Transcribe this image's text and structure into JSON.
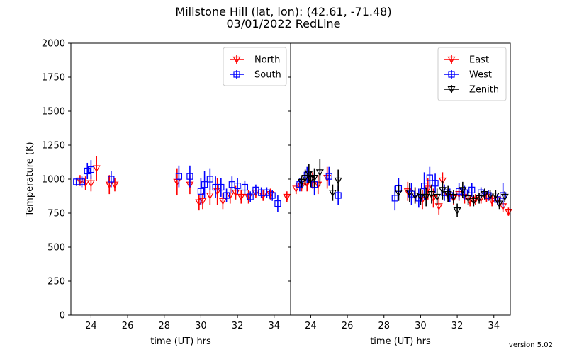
{
  "title_line1": "Millstone Hill  (lat, lon):  (42.61, -71.48)",
  "title_line2": "03/01/2022 RedLine",
  "version": "version 5.02",
  "chart_data": [
    {
      "type": "scatter",
      "panel": "left",
      "xlabel": "time (UT) hrs",
      "ylabel": "Temperature (K)",
      "xlim": [
        22.9,
        34.9
      ],
      "ylim": [
        0,
        2000
      ],
      "xticks": [
        24,
        26,
        28,
        30,
        32,
        34
      ],
      "yticks": [
        0,
        250,
        500,
        750,
        1000,
        1250,
        1500,
        1750,
        2000
      ],
      "legend_position": "top-right",
      "series": [
        {
          "name": "North",
          "color": "#ff0000",
          "marker": "tri-down",
          "x": [
            23.4,
            23.7,
            24.0,
            24.3,
            25.0,
            25.3,
            28.7,
            29.4,
            29.9,
            30.1,
            30.5,
            30.9,
            31.2,
            31.6,
            31.9,
            32.2,
            32.6,
            33.0,
            33.4,
            33.8,
            34.7
          ],
          "y": [
            990,
            970,
            970,
            1080,
            960,
            960,
            980,
            960,
            830,
            840,
            880,
            910,
            840,
            880,
            900,
            870,
            870,
            900,
            880,
            890,
            870
          ],
          "err": [
            40,
            50,
            60,
            90,
            70,
            50,
            100,
            70,
            60,
            60,
            70,
            100,
            60,
            60,
            50,
            50,
            50,
            40,
            40,
            40,
            40
          ]
        },
        {
          "name": "South",
          "color": "#0000ff",
          "marker": "square",
          "x": [
            23.2,
            23.5,
            23.8,
            24.0,
            25.1,
            28.8,
            29.4,
            30.0,
            30.2,
            30.5,
            30.8,
            31.1,
            31.4,
            31.7,
            32.0,
            32.4,
            32.7,
            33.0,
            33.3,
            33.6,
            33.9,
            34.2
          ],
          "y": [
            980,
            980,
            1060,
            1070,
            1000,
            1020,
            1020,
            910,
            960,
            1000,
            940,
            940,
            880,
            960,
            950,
            940,
            870,
            920,
            900,
            900,
            880,
            820
          ],
          "err": [
            30,
            40,
            60,
            70,
            60,
            80,
            80,
            100,
            100,
            80,
            80,
            70,
            50,
            60,
            60,
            50,
            40,
            40,
            40,
            40,
            40,
            60
          ]
        }
      ]
    },
    {
      "type": "scatter",
      "panel": "right",
      "xlabel": "time (UT) hrs",
      "ylabel": "",
      "xlim": [
        22.9,
        34.9
      ],
      "ylim": [
        0,
        2000
      ],
      "xticks": [
        24,
        26,
        28,
        30,
        32,
        34
      ],
      "yticks": [
        0,
        250,
        500,
        750,
        1000,
        1250,
        1500,
        1750,
        2000
      ],
      "legend_position": "top-right",
      "series": [
        {
          "name": "East",
          "color": "#ff0000",
          "marker": "tri-down",
          "x": [
            23.2,
            23.5,
            23.8,
            24.1,
            24.4,
            24.9,
            29.3,
            29.7,
            30.1,
            30.4,
            30.7,
            31.0,
            31.2,
            31.5,
            31.8,
            32.1,
            32.4,
            32.7,
            33.0,
            33.3,
            33.6,
            33.9,
            34.2,
            34.5,
            34.8
          ],
          "y": [
            930,
            950,
            970,
            990,
            960,
            1010,
            910,
            880,
            850,
            930,
            860,
            800,
            990,
            880,
            860,
            890,
            870,
            840,
            850,
            860,
            870,
            840,
            850,
            800,
            760
          ],
          "err": [
            40,
            40,
            60,
            60,
            70,
            80,
            70,
            60,
            70,
            80,
            70,
            60,
            60,
            50,
            50,
            50,
            50,
            40,
            40,
            40,
            40,
            40,
            40,
            40,
            30
          ]
        },
        {
          "name": "West",
          "color": "#0000ff",
          "marker": "square",
          "x": [
            23.4,
            23.8,
            24.2,
            25.0,
            25.5,
            28.6,
            28.8,
            29.5,
            29.9,
            30.2,
            30.5,
            30.8,
            31.3,
            31.6,
            32.1,
            32.4,
            32.8,
            33.3,
            33.7,
            34.2,
            34.5
          ],
          "y": [
            960,
            1030,
            960,
            1020,
            880,
            860,
            930,
            890,
            860,
            950,
            1010,
            970,
            900,
            880,
            910,
            900,
            920,
            900,
            880,
            850,
            880
          ],
          "err": [
            50,
            60,
            80,
            70,
            70,
            90,
            80,
            80,
            70,
            100,
            80,
            70,
            60,
            50,
            60,
            50,
            50,
            40,
            40,
            40,
            90
          ]
        },
        {
          "name": "Zenith",
          "color": "#000000",
          "marker": "tri-down",
          "x": [
            23.5,
            23.7,
            23.9,
            24.0,
            24.2,
            24.5,
            25.2,
            25.5,
            28.8,
            29.4,
            29.7,
            30.0,
            30.3,
            30.6,
            30.9,
            31.2,
            31.5,
            31.8,
            32.0,
            32.3,
            32.6,
            32.9,
            33.2,
            33.5,
            33.8,
            34.1,
            34.3,
            34.6
          ],
          "y": [
            980,
            1010,
            1040,
            1000,
            1010,
            1050,
            900,
            990,
            900,
            900,
            880,
            870,
            870,
            890,
            870,
            920,
            890,
            870,
            770,
            920,
            860,
            840,
            860,
            890,
            880,
            880,
            820,
            870
          ],
          "err": [
            40,
            60,
            70,
            60,
            70,
            100,
            60,
            80,
            60,
            70,
            60,
            60,
            70,
            70,
            60,
            70,
            60,
            50,
            50,
            60,
            50,
            40,
            40,
            40,
            40,
            40,
            40,
            40
          ]
        }
      ]
    }
  ]
}
